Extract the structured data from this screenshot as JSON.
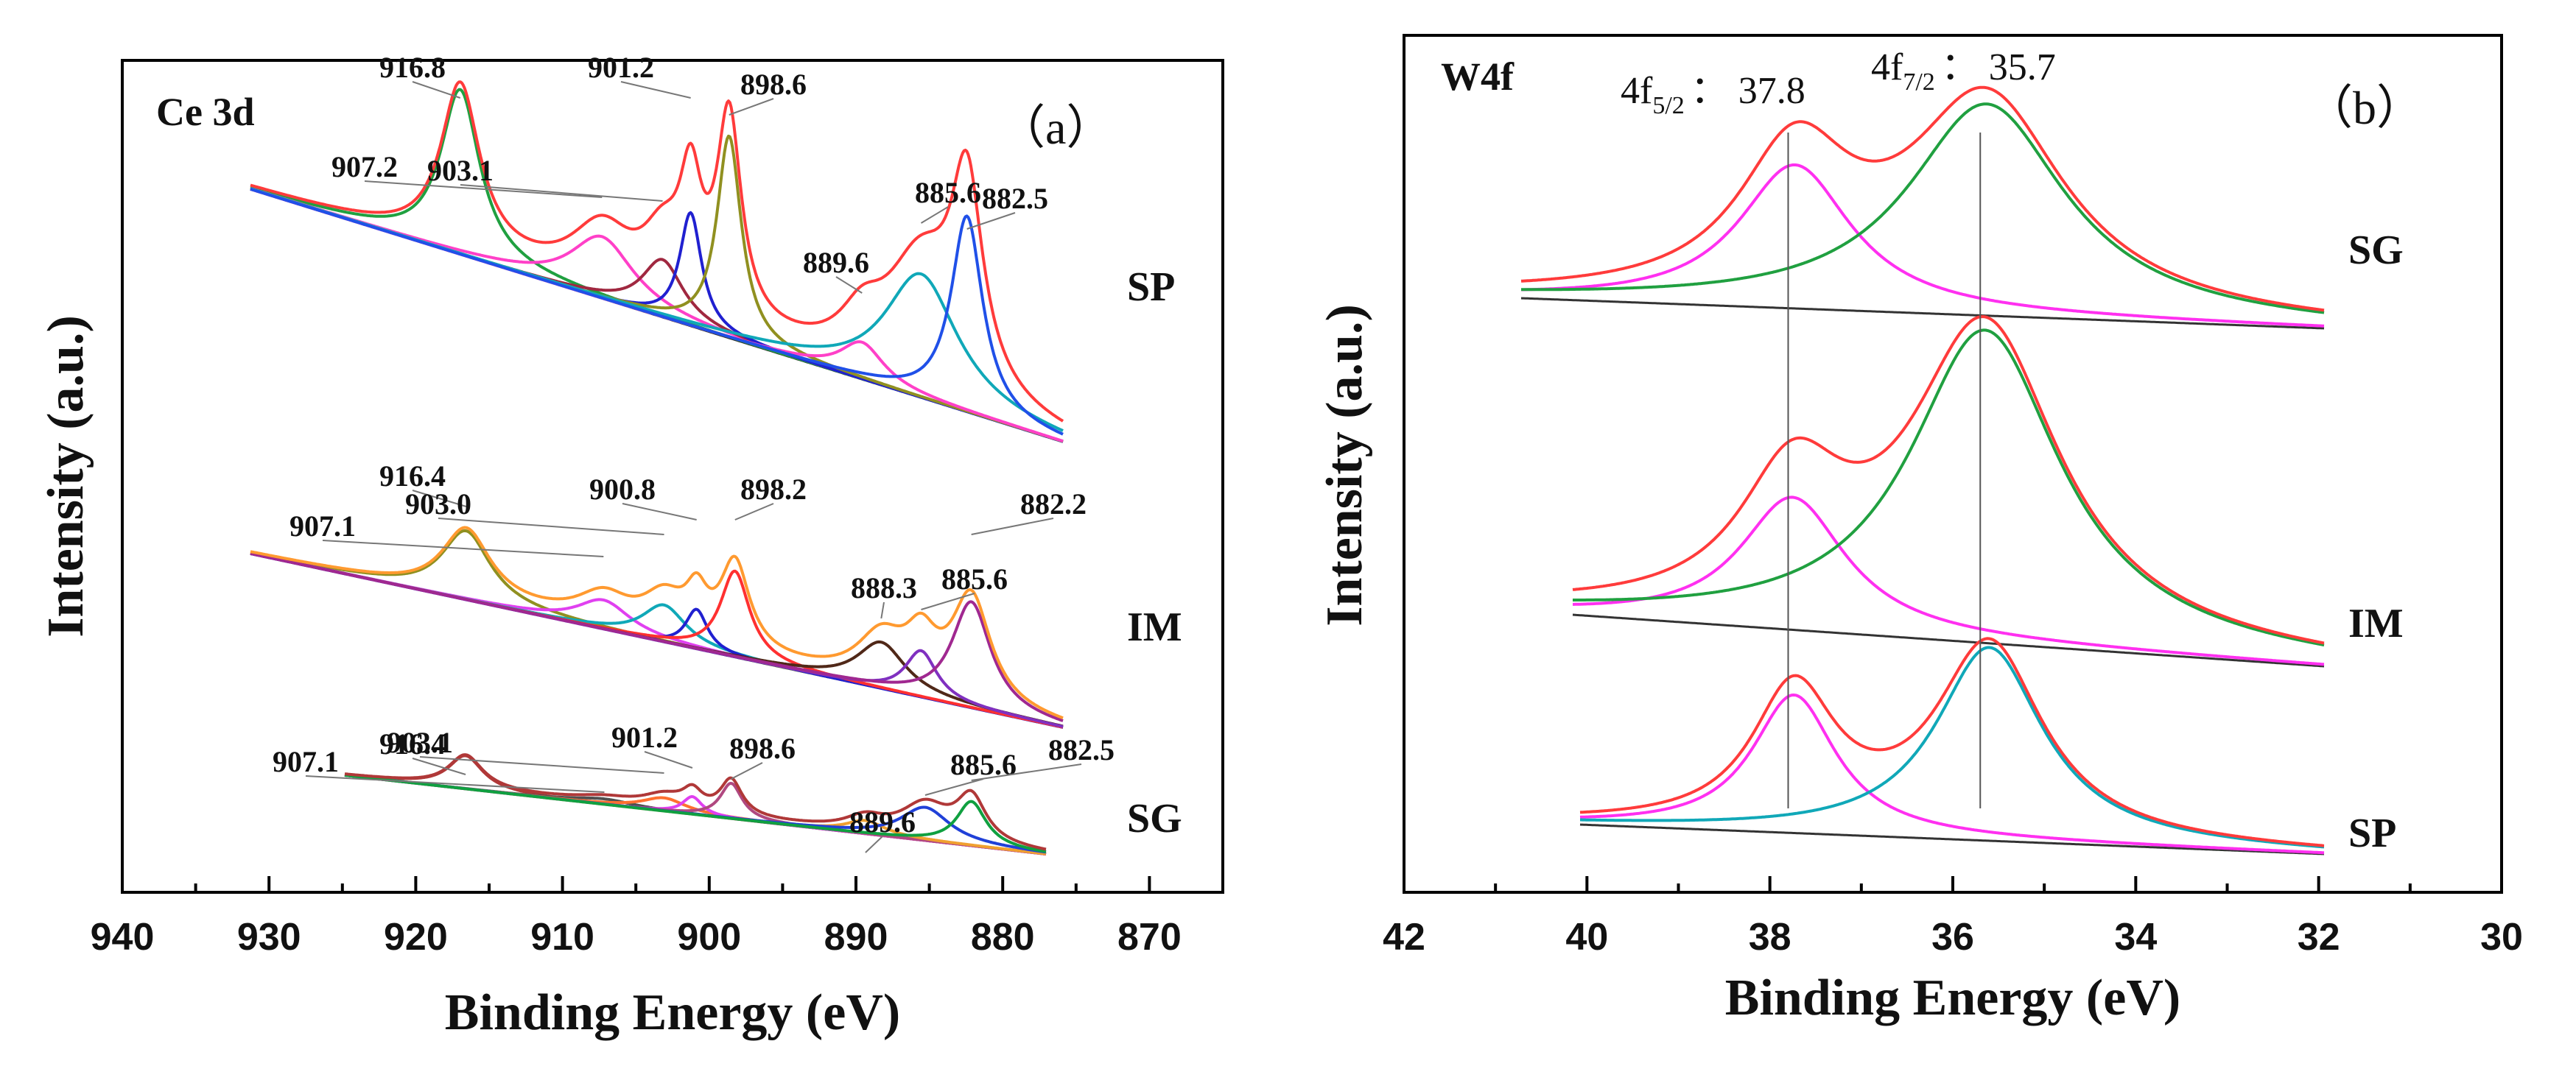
{
  "chart_data": [
    {
      "type": "line",
      "panel_label": "（a）",
      "corner_label": "Ce 3d",
      "xlabel": "Binding Energy (eV)",
      "ylabel": "Intensity (a.u.)",
      "xlim": [
        940,
        865
      ],
      "x_reversed": true,
      "xticks": [
        940,
        930,
        920,
        910,
        900,
        890,
        880,
        870
      ],
      "xtick_labels": [
        "940",
        "930",
        "920",
        "910",
        "900",
        "890",
        "880",
        "870"
      ],
      "y_ticks_shown": false,
      "series": [
        {
          "name": "SP",
          "x_range": [
            931,
            876
          ],
          "baseline": [
            0.65,
            0.05
          ],
          "envelope_color": "#ff3b3b",
          "components": [
            {
              "center": 916.8,
              "height": 0.8,
              "width": 1.6,
              "color": "#20a040"
            },
            {
              "center": 907.2,
              "height": 0.3,
              "width": 2.6,
              "color": "#ff40c8"
            },
            {
              "center": 903.1,
              "height": 0.28,
              "width": 1.7,
              "color": "#a02840"
            },
            {
              "center": 901.2,
              "height": 0.55,
              "width": 0.9,
              "color": "#2020d0"
            },
            {
              "center": 898.6,
              "height": 0.98,
              "width": 1.0,
              "color": "#909020"
            },
            {
              "center": 889.6,
              "height": 0.18,
              "width": 1.8,
              "color": "#ff40c8"
            },
            {
              "center": 885.6,
              "height": 0.6,
              "width": 3.0,
              "color": "#10a8b8"
            },
            {
              "center": 882.5,
              "height": 0.95,
              "width": 1.3,
              "color": "#2050e8"
            }
          ],
          "peak_labels": [
            "916.8",
            "907.2",
            "903.1",
            "901.2",
            "898.6",
            "889.6",
            "885.6",
            "882.5"
          ]
        },
        {
          "name": "IM",
          "x_range": [
            931,
            876
          ],
          "baseline": [
            0.62,
            0.08
          ],
          "envelope_color": "#ff9a30",
          "components": [
            {
              "center": 916.4,
              "height": 0.52,
              "width": 2.0,
              "color": "#909020"
            },
            {
              "center": 907.1,
              "height": 0.22,
              "width": 2.2,
              "color": "#e040f0"
            },
            {
              "center": 903.0,
              "height": 0.28,
              "width": 1.8,
              "color": "#10a8b8"
            },
            {
              "center": 900.8,
              "height": 0.3,
              "width": 0.9,
              "color": "#2020d0"
            },
            {
              "center": 898.2,
              "height": 0.65,
              "width": 1.2,
              "color": "#ff3030"
            },
            {
              "center": 888.3,
              "height": 0.35,
              "width": 2.0,
              "color": "#502818"
            },
            {
              "center": 885.6,
              "height": 0.35,
              "width": 1.3,
              "color": "#8030c0"
            },
            {
              "center": 882.2,
              "height": 0.8,
              "width": 1.6,
              "color": "#a02890"
            }
          ],
          "peak_labels": [
            "916.4",
            "907.1",
            "903.0",
            "900.8",
            "898.2",
            "888.3",
            "885.6",
            "882.2"
          ]
        },
        {
          "name": "SG",
          "x_range": [
            924.5,
            877.5
          ],
          "baseline": [
            0.3,
            0.02
          ],
          "envelope_color": "#b03838",
          "components": [
            {
              "center": 916.4,
              "height": 0.3,
              "width": 1.4,
              "color": "#b03838"
            },
            {
              "center": 907.1,
              "height": 0.05,
              "width": 2.4,
              "color": "#505050"
            },
            {
              "center": 903.1,
              "height": 0.12,
              "width": 1.8,
              "color": "#ff7030"
            },
            {
              "center": 901.2,
              "height": 0.16,
              "width": 0.8,
              "color": "#e040f0"
            },
            {
              "center": 898.6,
              "height": 0.32,
              "width": 0.9,
              "color": "#b04880"
            },
            {
              "center": 889.6,
              "height": 0.12,
              "width": 1.6,
              "color": "#f0a030"
            },
            {
              "center": 885.6,
              "height": 0.3,
              "width": 2.0,
              "color": "#2040d8"
            },
            {
              "center": 882.5,
              "height": 0.4,
              "width": 1.2,
              "color": "#10a040"
            }
          ],
          "peak_labels": [
            "916.4",
            "907.1",
            "903.1",
            "901.2",
            "898.6",
            "889.6",
            "885.6",
            "882.5"
          ]
        }
      ]
    },
    {
      "type": "line",
      "panel_label": "（b）",
      "corner_label": "W4f",
      "xlabel": "Binding Energy (eV)",
      "ylabel": "Intensity (a.u.)",
      "xlim": [
        42,
        30
      ],
      "x_reversed": true,
      "xticks": [
        42,
        40,
        38,
        36,
        34,
        32,
        30
      ],
      "xtick_labels": [
        "42",
        "40",
        "38",
        "36",
        "34",
        "32",
        "30"
      ],
      "y_ticks_shown": false,
      "reference_lines": [
        {
          "label_main": "4f",
          "label_sub": "5/2",
          "label_value": "： 37.8",
          "x": 37.8
        },
        {
          "label_main": "4f",
          "label_sub": "7/2",
          "label_value": "： 35.7",
          "x": 35.7
        }
      ],
      "series": [
        {
          "name": "SG",
          "x_range": [
            40.8,
            32
          ],
          "baseline": [
            0.12,
            0.02
          ],
          "envelope_color": "#ff3b3b",
          "components": [
            {
              "center": 37.8,
              "height": 0.78,
              "width": 0.75,
              "color": "#ff30f0"
            },
            {
              "center": 35.7,
              "height": 1.15,
              "width": 1.05,
              "color": "#20a040"
            }
          ]
        },
        {
          "name": "IM",
          "x_range": [
            40.2,
            32
          ],
          "baseline": [
            0.12,
            0.02
          ],
          "envelope_color": "#ff3b3b",
          "components": [
            {
              "center": 37.8,
              "height": 0.72,
              "width": 0.7,
              "color": "#ff30f0"
            },
            {
              "center": 35.7,
              "height": 1.7,
              "width": 1.0,
              "color": "#20a040"
            }
          ]
        },
        {
          "name": "SP",
          "x_range": [
            40.1,
            32.1
          ],
          "baseline": [
            0.12,
            0.02
          ],
          "envelope_color": "#ff3b3b",
          "components": [
            {
              "center": 37.8,
              "height": 0.75,
              "width": 0.55,
              "color": "#ff30f0"
            },
            {
              "center": 35.7,
              "height": 1.05,
              "width": 0.7,
              "color": "#10a8b8"
            }
          ]
        }
      ]
    }
  ]
}
